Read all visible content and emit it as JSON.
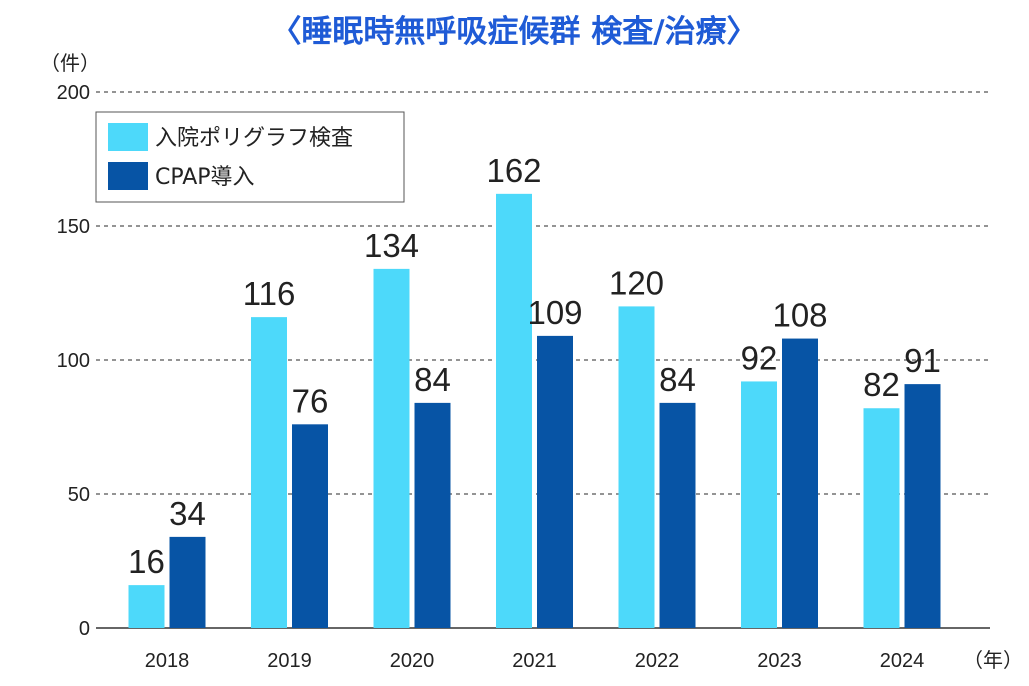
{
  "chart_data": {
    "type": "bar",
    "title": "〈睡眠時無呼吸症候群 検査/治療〉",
    "ylabel": "（件）",
    "xlabel": "（年）",
    "categories": [
      "2018",
      "2019",
      "2020",
      "2021",
      "2022",
      "2023",
      "2024"
    ],
    "series": [
      {
        "name": "入院ポリグラフ検査",
        "values": [
          16,
          116,
          134,
          162,
          120,
          92,
          82
        ],
        "color": "#4dd9fa"
      },
      {
        "name": "CPAP導入",
        "values": [
          34,
          76,
          84,
          109,
          84,
          108,
          91
        ],
        "color": "#0754a5"
      }
    ],
    "ylim": [
      0,
      200
    ],
    "yticks": [
      "0",
      "50",
      "100",
      "150",
      "200"
    ],
    "grid": true,
    "legend": "top-left"
  }
}
